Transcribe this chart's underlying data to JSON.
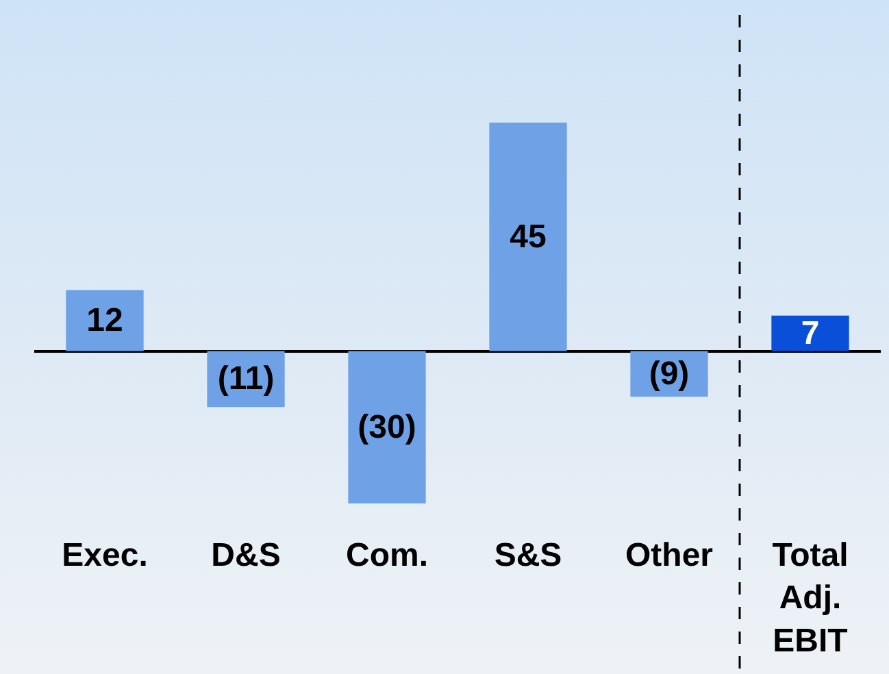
{
  "chart_data": {
    "type": "bar",
    "categories": [
      "Exec.",
      "D&S",
      "Com.",
      "S&S",
      "Other",
      "Total Adj. EBIT"
    ],
    "values": [
      12,
      -11,
      -30,
      45,
      -9,
      7
    ],
    "colors": [
      "#6ea1e6",
      "#6ea1e6",
      "#6ea1e6",
      "#6ea1e6",
      "#6ea1e6",
      "#0a4fd8"
    ],
    "value_labels": [
      "12",
      "(11)",
      "(30)",
      "45",
      "(9)",
      "7"
    ],
    "grid": false,
    "legend": false
  }
}
